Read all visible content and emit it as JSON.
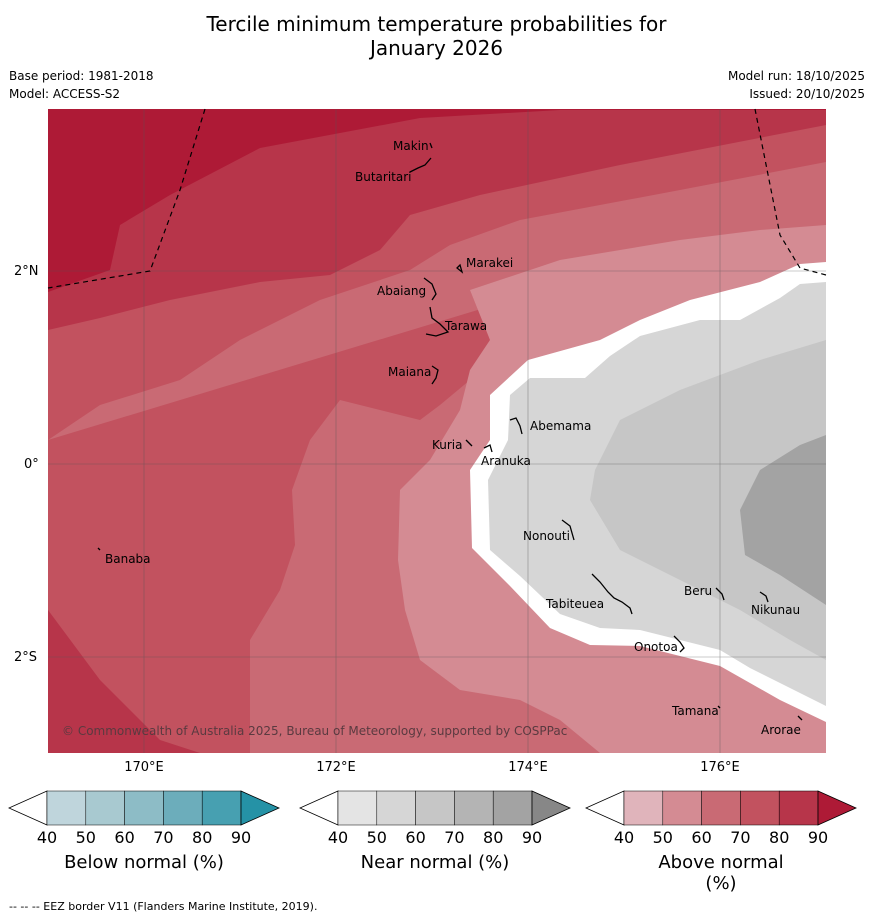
{
  "title_line1": "Tercile minimum temperature probabilities for",
  "title_line2": "January 2026",
  "meta": {
    "base_period": "Base period: 1981-2018",
    "model": "Model: ACCESS-S2",
    "model_run": "Model run: 18/10/2025",
    "issued": "Issued: 20/10/2025"
  },
  "map": {
    "lat_labels": [
      "2°N",
      "0°",
      "2°S"
    ],
    "lon_labels": [
      "170°E",
      "172°E",
      "174°E",
      "176°E"
    ],
    "copyright": "© Commonwealth of Australia 2025, Bureau of Meteorology, supported by COSPPac",
    "places": [
      "Makin",
      "Butaritari",
      "Marakei",
      "Abaiang",
      "Tarawa",
      "Maiana",
      "Abemama",
      "Kuria",
      "Aranuka",
      "Banaba",
      "Nonouti",
      "Beru",
      "Tabiteuea",
      "Nikunau",
      "Onotoa",
      "Tamana",
      "Arorae"
    ]
  },
  "colorbars": [
    {
      "name": "Below normal (%)",
      "ticks": [
        "40",
        "50",
        "60",
        "70",
        "80",
        "90"
      ],
      "colors": [
        "#ffffff",
        "#bfd5dc",
        "#a8c9d0",
        "#8dbcc6",
        "#6cadbb",
        "#47a0b1",
        "#2592a6"
      ]
    },
    {
      "name": "Near normal (%)",
      "ticks": [
        "40",
        "50",
        "60",
        "70",
        "80",
        "90"
      ],
      "colors": [
        "#ffffff",
        "#e4e4e4",
        "#d6d6d6",
        "#c6c6c6",
        "#b4b4b4",
        "#a3a3a3",
        "#878787"
      ]
    },
    {
      "name": "Above normal (%)",
      "ticks": [
        "40",
        "50",
        "60",
        "70",
        "80",
        "90"
      ],
      "colors": [
        "#ffffff",
        "#e0b4bb",
        "#d48b93",
        "#c96a74",
        "#c2525f",
        "#b7354a",
        "#ae1a36"
      ]
    }
  ],
  "footer": "--  --  -- EEZ border V11 (Flanders Marine Institute, 2019)."
}
